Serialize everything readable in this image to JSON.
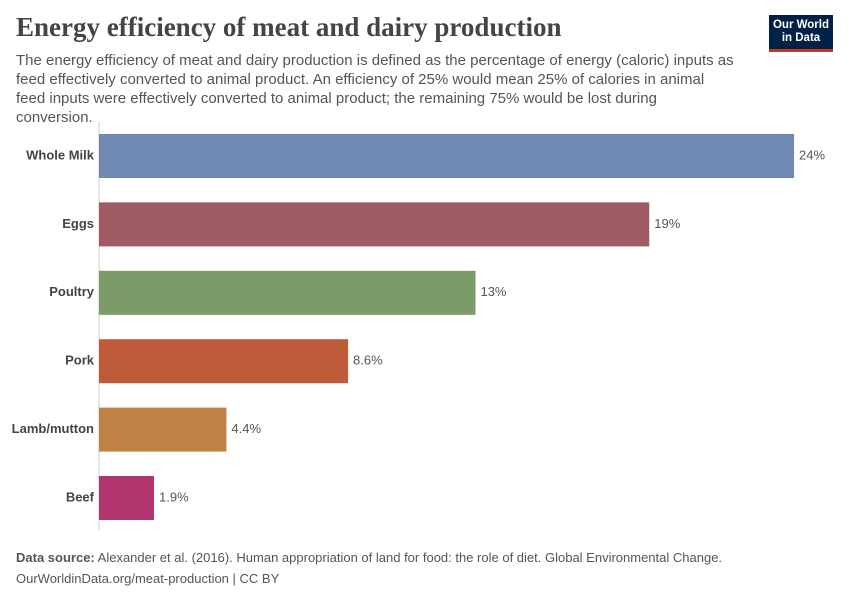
{
  "chart_data": {
    "type": "bar",
    "orientation": "horizontal",
    "title": "Energy efficiency of meat and dairy production",
    "subtitle": "The energy efficiency of meat and dairy production is defined as the percentage of energy (caloric) inputs as feed effectively converted to animal product. An efficiency of 25% would mean 25% of calories in animal feed inputs were effectively converted to animal product; the remaining 75% would be lost during conversion.",
    "categories": [
      "Whole Milk",
      "Eggs",
      "Poultry",
      "Pork",
      "Lamb/mutton",
      "Beef"
    ],
    "values": [
      24,
      19,
      13,
      8.6,
      4.4,
      1.9
    ],
    "value_labels": [
      "24%",
      "19%",
      "13%",
      "8.6%",
      "4.4%",
      "1.9%"
    ],
    "colors": [
      "#7089b2",
      "#a05a61",
      "#7b9c69",
      "#c05b3a",
      "#c08244",
      "#b13670"
    ],
    "source_label": "Data source:",
    "source": "Alexander et al. (2016). Human appropriation of land for food: the role of diet. Global Environmental Change.",
    "url": "OurWorldinData.org/meat-production",
    "license": "CC BY",
    "logo_lines": [
      "Our World",
      "in Data"
    ]
  }
}
